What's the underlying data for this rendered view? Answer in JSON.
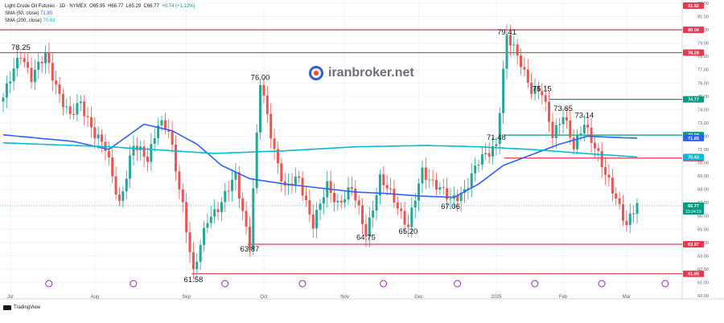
{
  "header": {
    "symbol": "Light Crude Oil Futures · 1D · NYMEX",
    "open_label": "O",
    "open": "65.95",
    "high_label": "H",
    "high": "66.77",
    "low_label": "L",
    "low": "65.29",
    "close_label": "C",
    "close": "66.77",
    "change": "+0.74 (+1.12%)",
    "sma50_label": "SMA (50, close)",
    "sma50_value": "71.85",
    "sma200_label": "SMA (200, close)",
    "sma200_value": "70.43"
  },
  "watermark": {
    "text": "iranbroker.net",
    "icon": "iranbroker-logo-icon"
  },
  "footer": {
    "brand": "TradingView",
    "icon": "tradingview-logo-icon"
  },
  "colors": {
    "up": "#26a69a",
    "down": "#ef5350",
    "red_line": "#e53950",
    "green_line": "#089981",
    "sma50": "#2962ff",
    "sma200": "#00bcd4",
    "grid": "#f0f3fa",
    "axis_text": "#131722"
  },
  "chart_data": {
    "type": "candlestick",
    "title": "Light Crude Oil Futures",
    "y_axis_position": "right",
    "ylim": [
      60,
      82
    ],
    "y_ticks": [
      60.0,
      61.0,
      62.0,
      63.0,
      64.0,
      65.0,
      66.0,
      67.0,
      68.0,
      69.0,
      70.0,
      71.0,
      72.0,
      73.0,
      74.0,
      75.0,
      76.0,
      77.0,
      78.0,
      79.0,
      80.0,
      81.0,
      82.0
    ],
    "x_ticks": [
      "Jul",
      "Aug",
      "Sep",
      "Oct",
      "Nov",
      "Dec",
      "2025",
      "Feb",
      "Mar"
    ],
    "horizontal_levels": [
      {
        "value": 80.0,
        "color": "red",
        "tag": "80.00"
      },
      {
        "value": 78.28,
        "color": "red",
        "tag": "78.28"
      },
      {
        "value": 74.77,
        "color": "green",
        "tag": "74.77"
      },
      {
        "value": 72.08,
        "color": "green",
        "tag": "72.08"
      },
      {
        "value": 70.35,
        "color": "red",
        "tag": "70.35"
      },
      {
        "value": 63.87,
        "color": "red",
        "tag": "63.87"
      },
      {
        "value": 61.65,
        "color": "red",
        "tag": "61.65"
      }
    ],
    "price_tags": [
      {
        "value": 81.82,
        "color": "red",
        "text": "81.82"
      },
      {
        "value": 71.85,
        "color": "blue",
        "text": "71.85"
      },
      {
        "value": 70.43,
        "color": "teal",
        "text": "70.43"
      },
      {
        "value": 66.77,
        "color": "green",
        "text": "66.77",
        "subtext": "10:24:19"
      }
    ],
    "annotations": [
      {
        "text": "78.25",
        "date_index": 5,
        "value": 78.25
      },
      {
        "text": "76.00",
        "date_index": 73,
        "value": 76.0
      },
      {
        "text": "79.41",
        "date_index": 143,
        "value": 79.41
      },
      {
        "text": "75.15",
        "date_index": 153,
        "value": 75.15
      },
      {
        "text": "73.65",
        "date_index": 159,
        "value": 73.65
      },
      {
        "text": "73.14",
        "date_index": 165,
        "value": 73.14
      },
      {
        "text": "71.48",
        "date_index": 140,
        "value": 71.48
      },
      {
        "text": "67.06",
        "date_index": 127,
        "value": 67.06
      },
      {
        "text": "65.20",
        "date_index": 115,
        "value": 65.2
      },
      {
        "text": "64.75",
        "date_index": 103,
        "value": 64.75
      },
      {
        "text": "63.87",
        "date_index": 70,
        "value": 63.87
      },
      {
        "text": "61.58",
        "date_index": 54,
        "value": 61.58
      }
    ],
    "series": [
      {
        "name": "Price",
        "type": "candlestick",
        "waypoints": [
          [
            0,
            74.9
          ],
          [
            5,
            78.25
          ],
          [
            8,
            76.5
          ],
          [
            12,
            78.0
          ],
          [
            16,
            75.2
          ],
          [
            19,
            73.4
          ],
          [
            22,
            74.5
          ],
          [
            26,
            72.2
          ],
          [
            29,
            71.0
          ],
          [
            33,
            67.0
          ],
          [
            37,
            71.2
          ],
          [
            41,
            70.4
          ],
          [
            44,
            73.0
          ],
          [
            47,
            72.3
          ],
          [
            51,
            66.9
          ],
          [
            54,
            61.58
          ],
          [
            58,
            65.8
          ],
          [
            62,
            67.0
          ],
          [
            66,
            69.0
          ],
          [
            70,
            63.87
          ],
          [
            73,
            76.0
          ],
          [
            77,
            71.0
          ],
          [
            80,
            68.0
          ],
          [
            84,
            68.8
          ],
          [
            88,
            65.4
          ],
          [
            92,
            68.2
          ],
          [
            95,
            67.0
          ],
          [
            99,
            68.0
          ],
          [
            103,
            64.75
          ],
          [
            107,
            68.7
          ],
          [
            111,
            67.3
          ],
          [
            115,
            65.2
          ],
          [
            119,
            69.3
          ],
          [
            123,
            68.4
          ],
          [
            127,
            67.06
          ],
          [
            131,
            68.0
          ],
          [
            135,
            70.0
          ],
          [
            140,
            71.48
          ],
          [
            143,
            79.41
          ],
          [
            147,
            77.6
          ],
          [
            150,
            75.5
          ],
          [
            153,
            75.15
          ],
          [
            156,
            72.2
          ],
          [
            159,
            73.65
          ],
          [
            162,
            71.0
          ],
          [
            165,
            73.14
          ],
          [
            168,
            71.2
          ],
          [
            171,
            69.0
          ],
          [
            174,
            67.5
          ],
          [
            177,
            65.3
          ],
          [
            180,
            66.77
          ]
        ]
      },
      {
        "name": "SMA (50, close)",
        "type": "line",
        "color": "blue",
        "waypoints": [
          [
            0,
            72.1
          ],
          [
            20,
            71.6
          ],
          [
            30,
            71.0
          ],
          [
            40,
            72.9
          ],
          [
            48,
            72.4
          ],
          [
            55,
            71.4
          ],
          [
            62,
            69.8
          ],
          [
            70,
            68.8
          ],
          [
            80,
            68.4
          ],
          [
            90,
            68.1
          ],
          [
            100,
            67.8
          ],
          [
            108,
            67.7
          ],
          [
            118,
            67.5
          ],
          [
            128,
            67.4
          ],
          [
            135,
            68.4
          ],
          [
            142,
            69.8
          ],
          [
            150,
            70.6
          ],
          [
            158,
            71.4
          ],
          [
            166,
            72.0
          ],
          [
            174,
            71.9
          ],
          [
            180,
            71.85
          ]
        ]
      },
      {
        "name": "SMA (200, close)",
        "type": "line",
        "color": "teal",
        "waypoints": [
          [
            0,
            71.5
          ],
          [
            30,
            71.2
          ],
          [
            60,
            70.7
          ],
          [
            80,
            70.9
          ],
          [
            100,
            71.2
          ],
          [
            120,
            71.3
          ],
          [
            135,
            71.2
          ],
          [
            150,
            71.0
          ],
          [
            165,
            70.7
          ],
          [
            180,
            70.43
          ]
        ]
      }
    ]
  }
}
